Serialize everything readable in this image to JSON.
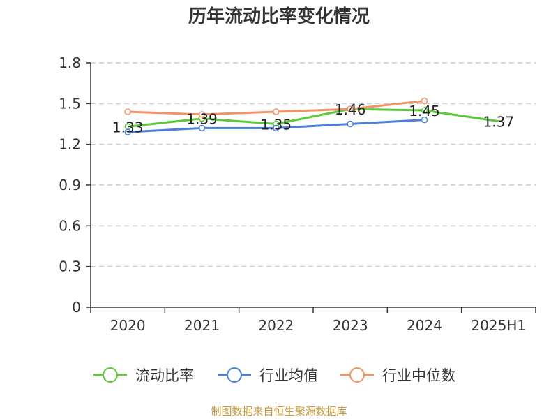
{
  "chart_data": {
    "type": "line",
    "title": "历年流动比率变化情况",
    "categories": [
      "2020",
      "2021",
      "2022",
      "2023",
      "2024",
      "2025H1"
    ],
    "y_ticks": [
      "0",
      "0.3",
      "0.6",
      "0.9",
      "1.2",
      "1.5",
      "1.8"
    ],
    "ylim": [
      0,
      1.8
    ],
    "grid": true,
    "legend_position": "bottom",
    "series": [
      {
        "name": "流动比率",
        "color": "#5cc93a",
        "values": [
          1.33,
          1.39,
          1.35,
          1.46,
          1.45,
          1.37
        ],
        "labels": [
          "1.33",
          "1.39",
          "1.35",
          "1.46",
          "1.45",
          "1.37"
        ]
      },
      {
        "name": "行业均值",
        "color": "#4a7fdc",
        "values": [
          1.29,
          1.32,
          1.32,
          1.35,
          1.38,
          null
        ]
      },
      {
        "name": "行业中位数",
        "color": "#f59263",
        "values": [
          1.44,
          1.42,
          1.44,
          1.46,
          1.52,
          null
        ]
      }
    ],
    "source": "制图数据来自恒生聚源数据库"
  }
}
